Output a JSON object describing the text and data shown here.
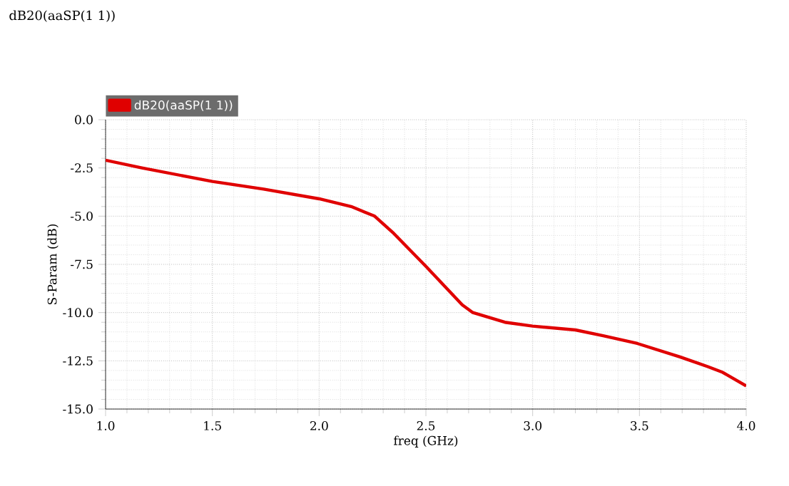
{
  "chart_data": {
    "type": "line",
    "title": "dB20(aaSP(1 1))",
    "xlabel": "freq (GHz)",
    "ylabel": "S-Param (dB)",
    "series": [
      {
        "name": "dB20(aaSP(1 1))",
        "color": "#e00000",
        "x": [
          1.0,
          1.17,
          1.5,
          1.74,
          2.0,
          2.15,
          2.26,
          2.35,
          2.5,
          2.67,
          2.72,
          2.87,
          3.0,
          3.2,
          3.33,
          3.49,
          3.69,
          3.82,
          3.89,
          4.0
        ],
        "values": [
          -2.1,
          -2.5,
          -3.2,
          -3.6,
          -4.1,
          -4.5,
          -5.0,
          -5.9,
          -7.6,
          -9.6,
          -10.0,
          -10.5,
          -10.7,
          -10.9,
          -11.2,
          -11.6,
          -12.3,
          -12.8,
          -13.1,
          -13.8
        ]
      }
    ],
    "xlim": [
      1.0,
      4.0
    ],
    "ylim": [
      -15.0,
      0.0
    ],
    "xticks": [
      {
        "value": 1.0,
        "label": "1.0"
      },
      1.5,
      {
        "value": 2.0,
        "label": "2.0"
      },
      2.5,
      {
        "value": 3.0,
        "label": "3.0"
      },
      3.5,
      {
        "value": 4.0,
        "label": "4.0"
      }
    ],
    "yticks": [
      {
        "value": -15.0,
        "label": "-15.0"
      },
      -12.5,
      {
        "value": -10.0,
        "label": "-10.0"
      },
      -7.5,
      {
        "value": -5.0,
        "label": "-5.0"
      },
      -2.5,
      {
        "value": 0.0,
        "label": "0.0"
      }
    ],
    "grid": true,
    "legend": "top left",
    "marker": "none",
    "line_style": "solid"
  }
}
